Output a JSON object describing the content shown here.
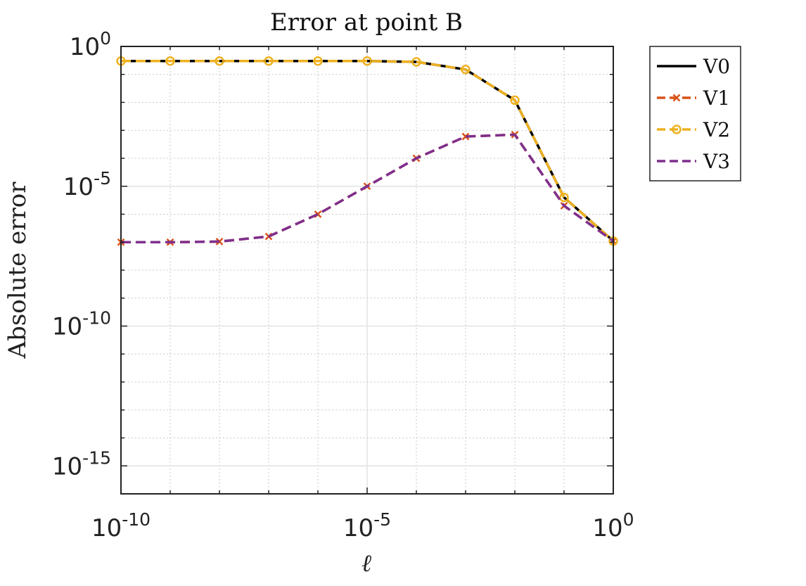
{
  "chart_data": {
    "type": "line",
    "title": "Error at point B",
    "xlabel": "ℓ",
    "ylabel": "Absolute error",
    "x_scale": "log",
    "y_scale": "log",
    "xlim": [
      1e-10,
      1
    ],
    "ylim": [
      1e-16,
      1
    ],
    "x_ticks": [
      1e-10,
      1e-05,
      1
    ],
    "x_tick_labels": [
      {
        "base": "10",
        "exp": "-10"
      },
      {
        "base": "10",
        "exp": "-5"
      },
      {
        "base": "10",
        "exp": "0"
      }
    ],
    "y_ticks": [
      1e-15,
      1e-10,
      1e-05,
      1
    ],
    "y_tick_labels": [
      {
        "base": "10",
        "exp": "-15"
      },
      {
        "base": "10",
        "exp": "-10"
      },
      {
        "base": "10",
        "exp": "-5"
      },
      {
        "base": "10",
        "exp": "0"
      }
    ],
    "grid": true,
    "legend_position": "outside-top-right",
    "x": [
      1e-10,
      1e-09,
      1e-08,
      1e-07,
      1e-06,
      1e-05,
      0.0001,
      0.001,
      0.01,
      0.1,
      1
    ],
    "series": [
      {
        "name": "V0",
        "color": "#000000",
        "style": "solid",
        "marker": "none",
        "values": [
          0.3,
          0.3,
          0.3,
          0.3,
          0.3,
          0.3,
          0.28,
          0.15,
          0.012,
          4e-06,
          1.1e-07
        ]
      },
      {
        "name": "V1",
        "color": "#D95319",
        "style": "dashed",
        "marker": "x",
        "values": [
          1e-07,
          1e-07,
          1.05e-07,
          1.6e-07,
          1e-06,
          1e-05,
          0.0001,
          0.0006,
          0.0007,
          2e-06,
          1.1e-07
        ]
      },
      {
        "name": "V2",
        "color": "#EDB120",
        "style": "dashed",
        "marker": "o",
        "values": [
          0.3,
          0.3,
          0.3,
          0.3,
          0.3,
          0.3,
          0.28,
          0.15,
          0.012,
          4e-06,
          1.1e-07
        ]
      },
      {
        "name": "V3",
        "color": "#7E2F8E",
        "style": "dashed",
        "marker": "none",
        "values": [
          1e-07,
          1e-07,
          1.05e-07,
          1.6e-07,
          1e-06,
          1e-05,
          0.0001,
          0.0006,
          0.0007,
          2e-06,
          1.1e-07
        ]
      }
    ]
  }
}
